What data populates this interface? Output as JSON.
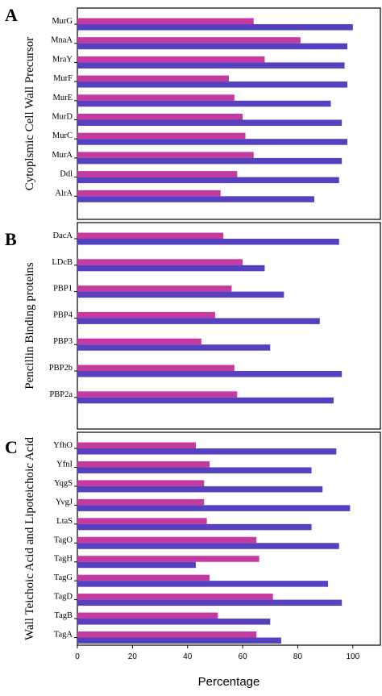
{
  "colors": {
    "series_a": "#c43a9e",
    "series_b": "#5540c0",
    "frame": "#000000"
  },
  "chart_data": [
    {
      "type": "bar",
      "orientation": "horizontal",
      "panel": "A",
      "ylabel": "Cytoplsmic Cell Wall Precursor",
      "xlim": [
        0,
        110
      ],
      "categories": [
        "MurG",
        "MnaA",
        "MraY",
        "MurF",
        "MurE",
        "MurD",
        "MurC",
        "MurA",
        "Ddl",
        "AlrA"
      ],
      "series": [
        {
          "values": [
            64,
            81,
            68,
            55,
            57,
            60,
            61,
            64,
            58,
            52
          ]
        },
        {
          "values": [
            100,
            98,
            97,
            98,
            92,
            96,
            98,
            96,
            95,
            86
          ]
        }
      ]
    },
    {
      "type": "bar",
      "orientation": "horizontal",
      "panel": "B",
      "ylabel": "Pencillin Binding proteins",
      "xlim": [
        0,
        110
      ],
      "categories": [
        "DacA",
        "LDcB",
        "PBP1",
        "PBP4",
        "PBP3",
        "PBP2b",
        "PBP2a"
      ],
      "series": [
        {
          "values": [
            53,
            60,
            56,
            50,
            45,
            57,
            58
          ]
        },
        {
          "values": [
            95,
            68,
            75,
            88,
            70,
            96,
            93
          ]
        }
      ]
    },
    {
      "type": "bar",
      "orientation": "horizontal",
      "panel": "C",
      "ylabel": "Wall Teichoic Acid and Lipoteichoic Acid",
      "xlabel": "Percentage",
      "xlim": [
        0,
        110
      ],
      "xticks": [
        0,
        20,
        40,
        60,
        80,
        100
      ],
      "categories": [
        "YfhO",
        "YfnI",
        "YqgS",
        "YvgJ",
        "LtaS",
        "TagO",
        "TagH",
        "TagG",
        "TagD",
        "TagB",
        "TagA"
      ],
      "series": [
        {
          "values": [
            43,
            48,
            46,
            46,
            47,
            65,
            66,
            48,
            71,
            51,
            65
          ]
        },
        {
          "values": [
            94,
            85,
            89,
            99,
            85,
            95,
            43,
            91,
            96,
            70,
            74
          ]
        }
      ]
    }
  ]
}
